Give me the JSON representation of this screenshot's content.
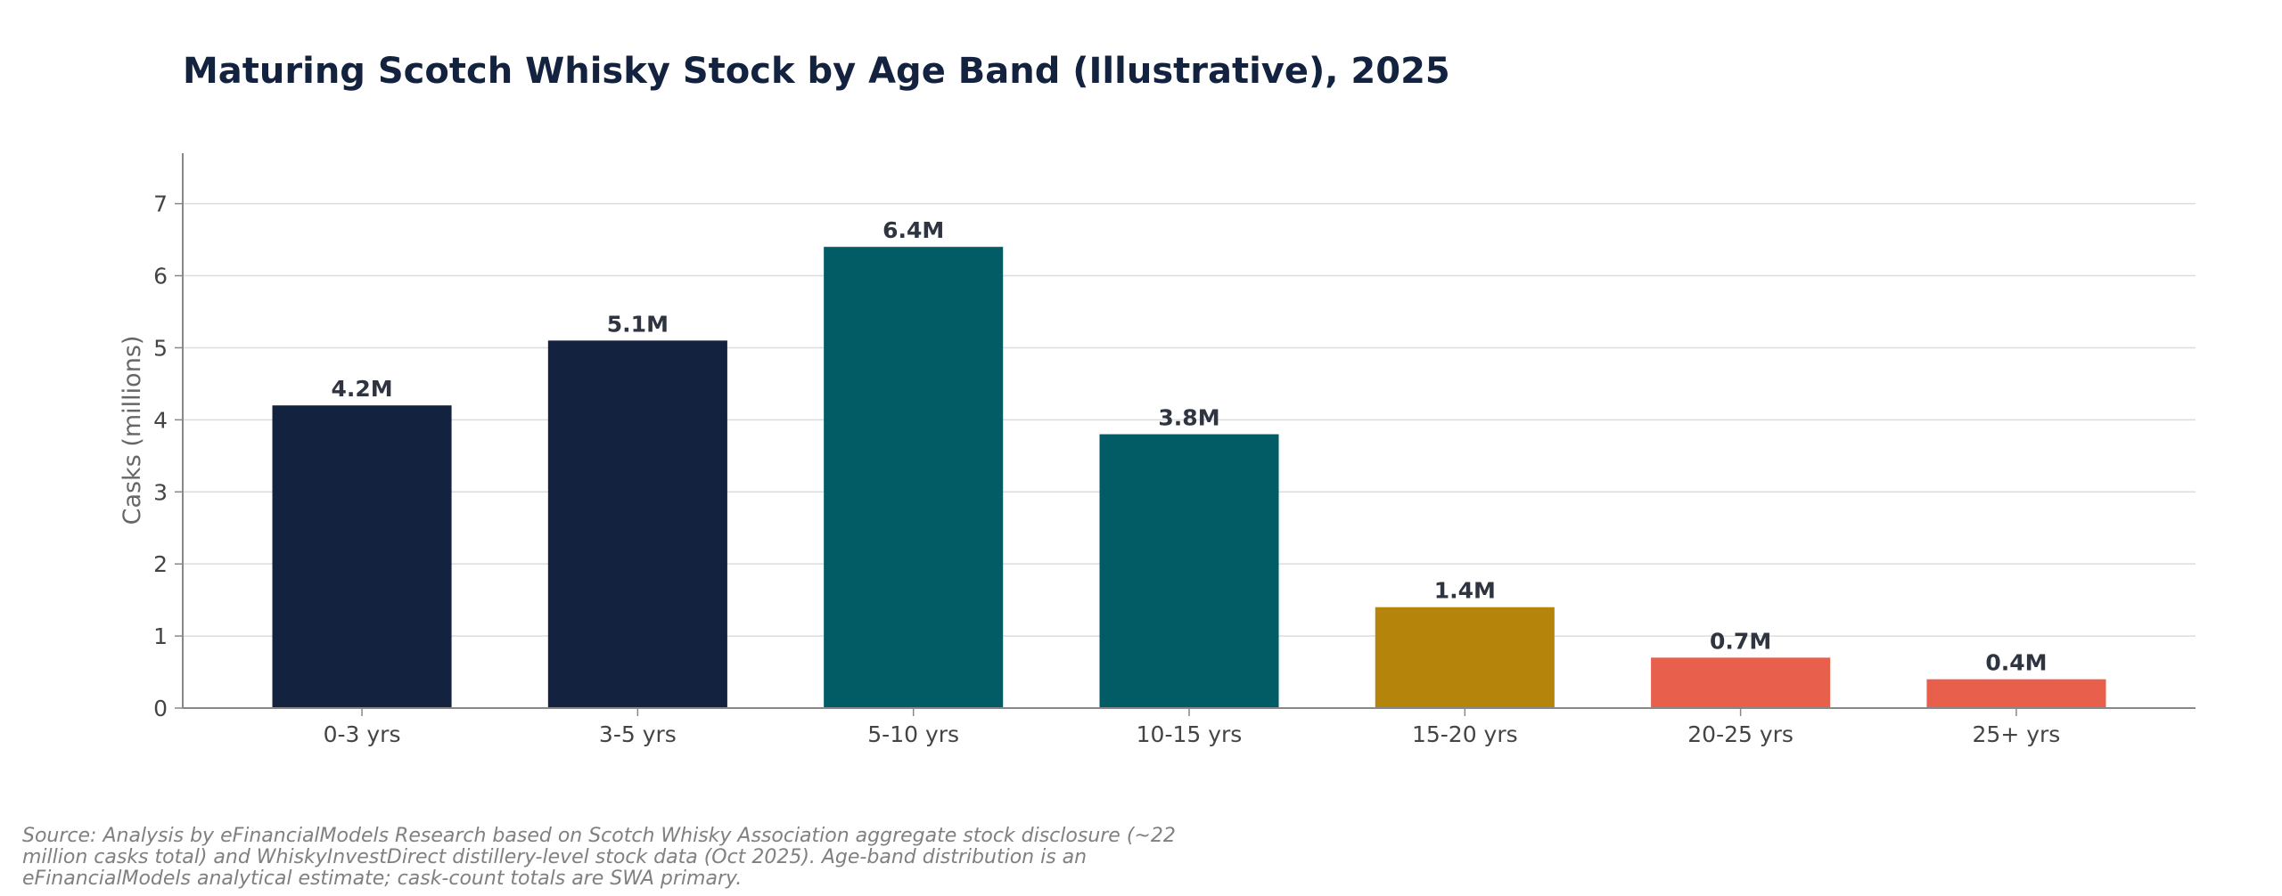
{
  "chart_data": {
    "type": "bar",
    "title": "Maturing Scotch Whisky Stock by Age Band (Illustrative), 2025",
    "ylabel": "Casks (millions)",
    "xlabel": "",
    "ylim": [
      0,
      7.7
    ],
    "yticks": [
      "0",
      "1",
      "2",
      "3",
      "4",
      "5",
      "6",
      "7"
    ],
    "grid": true,
    "categories": [
      "0-3 yrs",
      "3-5 yrs",
      "5-10 yrs",
      "10-15 yrs",
      "15-20 yrs",
      "20-25 yrs",
      "25+ yrs"
    ],
    "values": [
      4.2,
      5.1,
      6.4,
      3.8,
      1.4,
      0.7,
      0.4
    ],
    "data_labels": [
      "4.2M",
      "5.1M",
      "6.4M",
      "3.8M",
      "1.4M",
      "0.7M",
      "0.4M"
    ],
    "colors": [
      "#12223f",
      "#12223f",
      "#015c66",
      "#015c66",
      "#b5840b",
      "#e85f4c",
      "#e85f4c"
    ]
  },
  "source_note": "Source: Analysis by eFinancialModels Research based on Scotch Whisky Association aggregate stock disclosure (~22 million casks total) and WhiskyInvestDirect distillery-level stock data (Oct 2025). Age-band distribution is an eFinancialModels analytical estimate; cask-count totals are SWA primary."
}
